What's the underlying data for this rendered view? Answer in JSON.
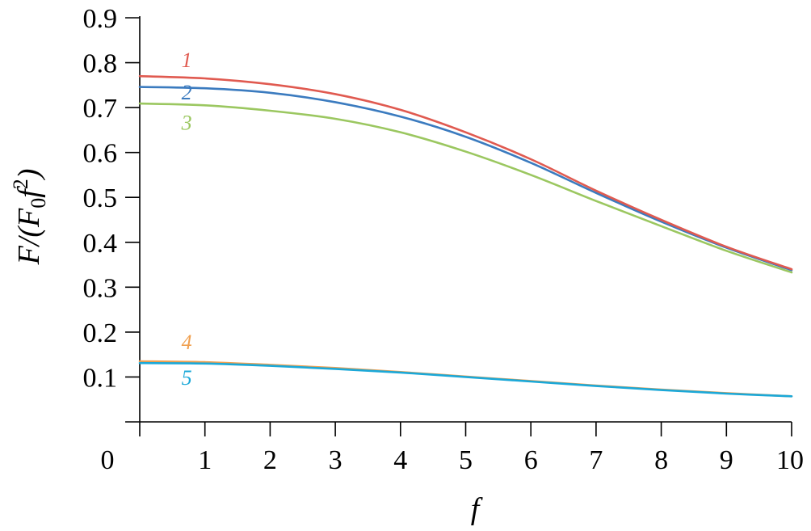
{
  "chart_data": {
    "type": "line",
    "xlabel": "f",
    "ylabel": "F/(F0f2)",
    "ylabel_parts": {
      "base": "F/(F",
      "sub": "0",
      "mid": "f",
      "sup": "2",
      "end": ")"
    },
    "xlim": [
      0,
      10
    ],
    "ylim": [
      0,
      0.9
    ],
    "x_ticks": [
      0,
      1,
      2,
      3,
      4,
      5,
      6,
      7,
      8,
      9,
      10
    ],
    "y_ticks": [
      0.1,
      0.2,
      0.3,
      0.4,
      0.5,
      0.6,
      0.7,
      0.8,
      0.9
    ],
    "x_tick_labels": [
      "0",
      "1",
      "2",
      "3",
      "4",
      "5",
      "6",
      "7",
      "8",
      "9",
      "10"
    ],
    "y_tick_labels": [
      "0.1",
      "0.2",
      "0.3",
      "0.4",
      "0.5",
      "0.6",
      "0.7",
      "0.8",
      "0.9"
    ],
    "grid": false,
    "x": [
      0,
      1,
      2,
      3,
      4,
      5,
      6,
      7,
      8,
      9,
      10
    ],
    "series": [
      {
        "label": "1",
        "color": "#e05a50",
        "values": [
          0.77,
          0.765,
          0.752,
          0.73,
          0.695,
          0.645,
          0.585,
          0.515,
          0.45,
          0.39,
          0.34
        ]
      },
      {
        "label": "2",
        "color": "#3b7bbf",
        "values": [
          0.746,
          0.743,
          0.733,
          0.712,
          0.68,
          0.635,
          0.577,
          0.51,
          0.446,
          0.388,
          0.338
        ]
      },
      {
        "label": "3",
        "color": "#9bc760",
        "values": [
          0.709,
          0.705,
          0.693,
          0.675,
          0.645,
          0.602,
          0.55,
          0.492,
          0.436,
          0.381,
          0.333
        ]
      },
      {
        "label": "4",
        "color": "#f0a050",
        "values": [
          0.135,
          0.133,
          0.127,
          0.12,
          0.111,
          0.101,
          0.091,
          0.081,
          0.072,
          0.064,
          0.057
        ]
      },
      {
        "label": "5",
        "color": "#1ba8d8",
        "values": [
          0.131,
          0.13,
          0.125,
          0.118,
          0.11,
          0.1,
          0.09,
          0.08,
          0.071,
          0.063,
          0.057
        ]
      }
    ]
  }
}
